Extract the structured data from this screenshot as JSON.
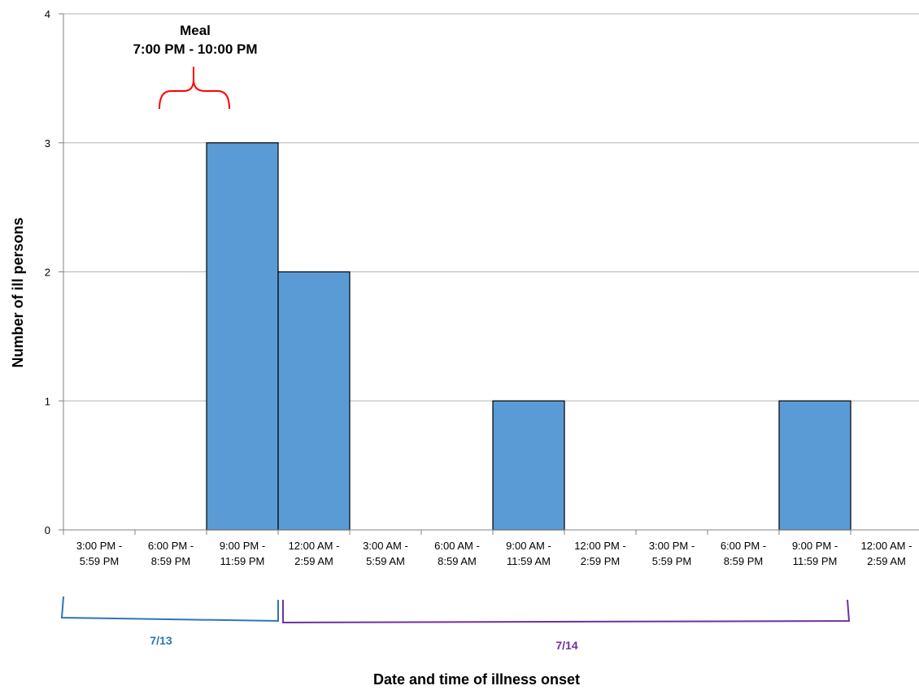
{
  "chart_data": {
    "type": "bar",
    "xlabel": "Date and time of illness onset",
    "ylabel": "Number of ill persons",
    "ylim": [
      0,
      4
    ],
    "yticks": [
      "0",
      "1",
      "2",
      "3",
      "4"
    ],
    "grid": true,
    "categories": [
      [
        "3:00 PM -",
        "5:59 PM"
      ],
      [
        "6:00 PM -",
        "8:59 PM"
      ],
      [
        "9:00 PM -",
        "11:59 PM"
      ],
      [
        "12:00 AM -",
        "2:59 AM"
      ],
      [
        "3:00 AM -",
        "5:59 AM"
      ],
      [
        "6:00 AM -",
        "8:59 AM"
      ],
      [
        "9:00 AM -",
        "11:59 AM"
      ],
      [
        "12:00 PM -",
        "2:59 PM"
      ],
      [
        "3:00 PM -",
        "5:59 PM"
      ],
      [
        "6:00 PM -",
        "8:59 PM"
      ],
      [
        "9:00 PM -",
        "11:59 PM"
      ],
      [
        "12:00 AM -",
        "2:59 AM"
      ]
    ],
    "values": [
      0,
      0,
      3,
      2,
      0,
      0,
      1,
      0,
      0,
      0,
      1,
      0
    ],
    "bar_color": "#5b9bd5",
    "annotation": {
      "title": "Meal",
      "range": "7:00 PM - 10:00 PM",
      "color": "#ff0000"
    },
    "date_groups": [
      {
        "label": "7/13",
        "color": "#2e75b6"
      },
      {
        "label": "7/14",
        "color": "#7030a0"
      }
    ]
  }
}
